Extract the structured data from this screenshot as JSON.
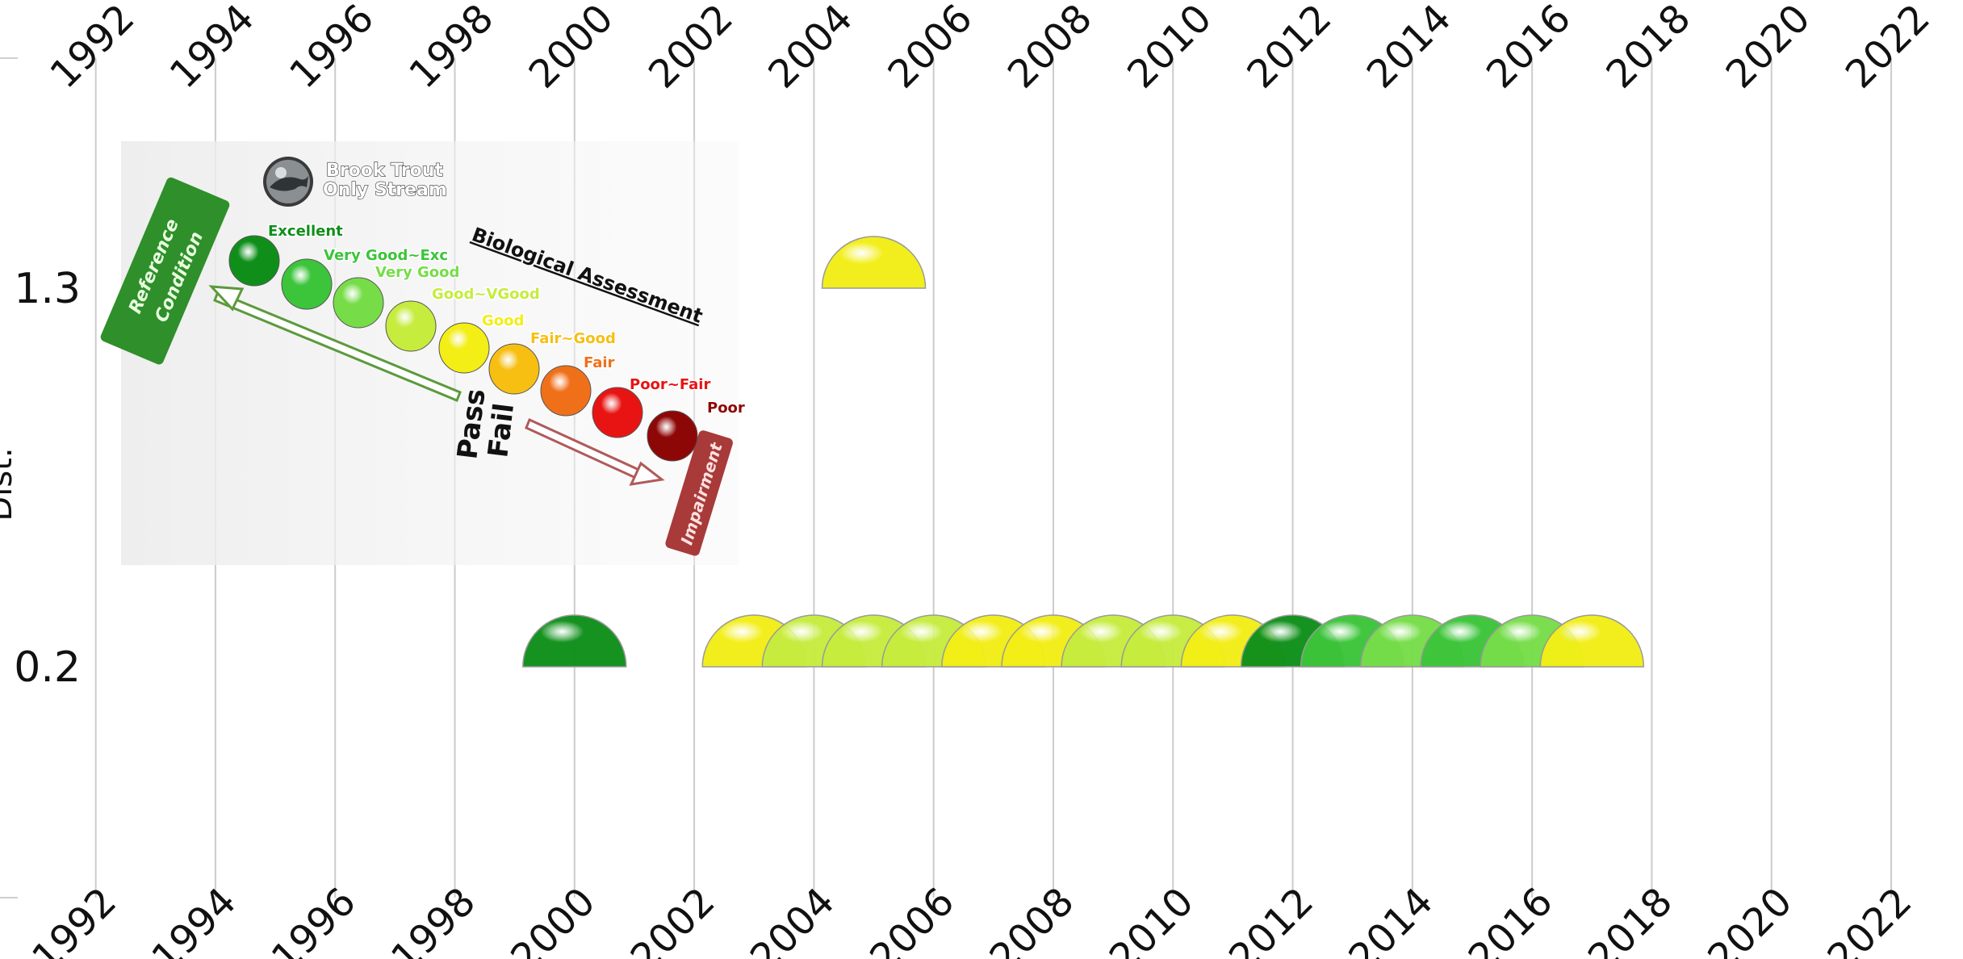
{
  "chart_data": {
    "type": "scatter",
    "xlim": [
      1990.4,
      2023.2
    ],
    "x_ticks": [
      "1992",
      "1994",
      "1996",
      "1998",
      "2000",
      "2002",
      "2004",
      "2006",
      "2008",
      "2010",
      "2012",
      "2014",
      "2016",
      "2018",
      "2020",
      "2022"
    ],
    "y_ticks": [
      "1.3",
      "0.2"
    ],
    "ylabel": "Dist.",
    "grid": "vertical",
    "points": [
      {
        "x": 2000,
        "y": 0.2,
        "rating": "Excellent"
      },
      {
        "x": 2003,
        "y": 0.2,
        "rating": "Good"
      },
      {
        "x": 2004,
        "y": 0.2,
        "rating": "Good~VGood"
      },
      {
        "x": 2005,
        "y": 0.2,
        "rating": "Good~VGood"
      },
      {
        "x": 2006,
        "y": 0.2,
        "rating": "Good~VGood"
      },
      {
        "x": 2007,
        "y": 0.2,
        "rating": "Good"
      },
      {
        "x": 2008,
        "y": 0.2,
        "rating": "Good"
      },
      {
        "x": 2009,
        "y": 0.2,
        "rating": "Good~VGood"
      },
      {
        "x": 2010,
        "y": 0.2,
        "rating": "Good~VGood"
      },
      {
        "x": 2011,
        "y": 0.2,
        "rating": "Good"
      },
      {
        "x": 2012,
        "y": 0.2,
        "rating": "Excellent"
      },
      {
        "x": 2013,
        "y": 0.2,
        "rating": "Very Good~Exc"
      },
      {
        "x": 2014,
        "y": 0.2,
        "rating": "Very Good"
      },
      {
        "x": 2015,
        "y": 0.2,
        "rating": "Very Good~Exc"
      },
      {
        "x": 2016,
        "y": 0.2,
        "rating": "Very Good"
      },
      {
        "x": 2017,
        "y": 0.2,
        "rating": "Good"
      },
      {
        "x": 2005,
        "y": 1.3,
        "rating": "Good"
      }
    ]
  },
  "legend": {
    "title": "Biological Assessment",
    "stream_note_line1": "Brook Trout",
    "stream_note_line2": "Only Stream",
    "reference_line1": "Reference",
    "reference_line2": "Condition",
    "pass": "Pass",
    "fail": "Fail",
    "impairment": "Impairment",
    "ratings": [
      {
        "label": "Excellent",
        "color": "#0f8f1a"
      },
      {
        "label": "Very Good~Exc",
        "color": "#3cc43a"
      },
      {
        "label": "Very Good",
        "color": "#76dd48"
      },
      {
        "label": "Good~VGood",
        "color": "#c6ec3e"
      },
      {
        "label": "Good",
        "color": "#f2ee16"
      },
      {
        "label": "Fair~Good",
        "color": "#f6bf12"
      },
      {
        "label": "Fair",
        "color": "#f0701a"
      },
      {
        "label": "Poor~Fair",
        "color": "#e81414"
      },
      {
        "label": "Poor",
        "color": "#8e0707"
      }
    ]
  }
}
